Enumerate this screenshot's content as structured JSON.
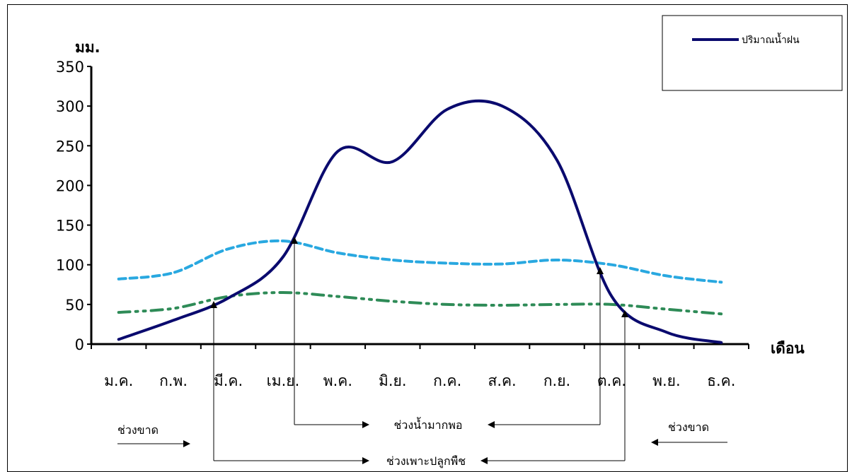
{
  "chart_data": {
    "type": "line",
    "ylabel": "มม.",
    "xlabel": "เดือน",
    "ylim": [
      0,
      350
    ],
    "yticks": [
      0,
      50,
      100,
      150,
      200,
      250,
      300,
      350
    ],
    "categories": [
      "ม.ค.",
      "ก.พ.",
      "มี.ค.",
      "เม.ย.",
      "พ.ค.",
      "มิ.ย.",
      "ก.ค.",
      "ส.ค.",
      "ก.ย.",
      "ต.ค.",
      "พ.ย.",
      "ธ.ค."
    ],
    "series": [
      {
        "name": "ปริมาณน้ำฝน",
        "color": "#0a0a6e",
        "style": "solid",
        "values": [
          6,
          30,
          58,
          110,
          243,
          230,
          296,
          300,
          232,
          60,
          15,
          2
        ]
      },
      {
        "color": "#29a8e0",
        "style": "dashed",
        "values": [
          82,
          90,
          120,
          130,
          115,
          106,
          102,
          101,
          106,
          100,
          86,
          78
        ]
      },
      {
        "color": "#2e8b57",
        "style": "dash-dot",
        "values": [
          40,
          45,
          60,
          65,
          60,
          54,
          50,
          49,
          50,
          50,
          44,
          38
        ]
      }
    ],
    "legend": {
      "position": "top-right",
      "entries": [
        "ปริมาณน้ำฝน"
      ]
    },
    "annotations": {
      "dry_left": "ช่วงขาด",
      "dry_right": "ช่วงขาด",
      "surplus": "ช่วงน้ำมากพอ",
      "planting": "ช่วงเพาะปลูกพืช"
    }
  }
}
